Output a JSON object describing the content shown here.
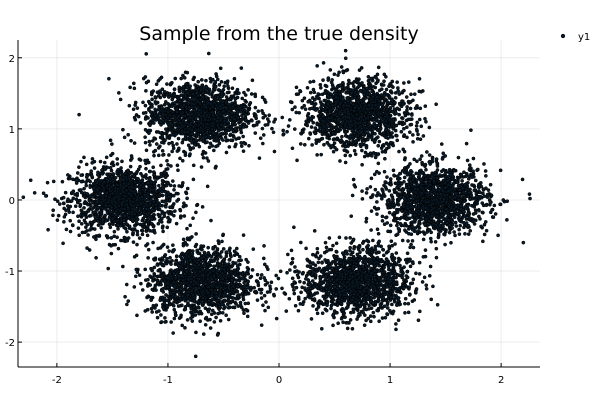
{
  "chart_data": {
    "type": "scatter",
    "title": "Sample from the true density",
    "xlabel": "",
    "ylabel": "",
    "xlim": [
      -2.35,
      2.35
    ],
    "ylim": [
      -2.35,
      2.25
    ],
    "xticks": [
      -2,
      -1,
      0,
      1,
      2
    ],
    "yticks": [
      -2,
      -1,
      0,
      1,
      2
    ],
    "xtick_labels": [
      "-2",
      "-1",
      "0",
      "1",
      "2"
    ],
    "ytick_labels": [
      "-2",
      "-1",
      "0",
      "1",
      "2"
    ],
    "grid": true,
    "legend_position": "right-outside-top",
    "point_color": "#0a1a26",
    "point_edge_color": "#000000",
    "series": [
      {
        "name": "y1",
        "description_of_clusters": [],
        "points": [
          [
            -1.4,
            0.02
          ],
          [
            -1.55,
            0.1
          ],
          [
            -1.25,
            -0.12
          ],
          [
            -1.6,
            -0.2
          ],
          [
            -1.15,
            0.25
          ],
          [
            -1.35,
            0.3
          ],
          [
            -1.7,
            0.05
          ],
          [
            -1.45,
            -0.35
          ],
          [
            -1.2,
            -0.05
          ],
          [
            -1.05,
            0.12
          ],
          [
            -0.72,
            1.2
          ],
          [
            -0.55,
            1.05
          ],
          [
            -0.9,
            1.35
          ],
          [
            -0.6,
            1.45
          ],
          [
            -0.85,
            0.95
          ],
          [
            -0.45,
            1.25
          ],
          [
            -1.0,
            1.15
          ],
          [
            -0.7,
            0.85
          ],
          [
            -0.5,
            1.55
          ],
          [
            -0.8,
            1.6
          ],
          [
            0.7,
            1.2
          ],
          [
            0.55,
            1.35
          ],
          [
            0.9,
            1.05
          ],
          [
            0.6,
            0.95
          ],
          [
            0.85,
            1.45
          ],
          [
            0.45,
            1.15
          ],
          [
            1.0,
            1.25
          ],
          [
            0.72,
            1.6
          ],
          [
            0.5,
            0.8
          ],
          [
            0.8,
            0.85
          ],
          [
            1.4,
            0.0
          ],
          [
            1.55,
            -0.12
          ],
          [
            1.25,
            0.15
          ],
          [
            1.6,
            0.25
          ],
          [
            1.15,
            -0.2
          ],
          [
            1.35,
            -0.3
          ],
          [
            1.7,
            0.05
          ],
          [
            1.45,
            0.35
          ],
          [
            1.2,
            0.05
          ],
          [
            1.8,
            -0.15
          ],
          [
            0.7,
            -1.15
          ],
          [
            0.55,
            -1.3
          ],
          [
            0.9,
            -1.0
          ],
          [
            0.6,
            -0.9
          ],
          [
            0.85,
            -1.45
          ],
          [
            0.45,
            -1.1
          ],
          [
            1.0,
            -1.25
          ],
          [
            0.72,
            -1.6
          ],
          [
            0.5,
            -0.8
          ],
          [
            0.8,
            -1.4
          ],
          [
            -0.7,
            -1.15
          ],
          [
            -0.55,
            -1.0
          ],
          [
            -0.9,
            -1.3
          ],
          [
            -0.6,
            -1.45
          ],
          [
            -0.85,
            -0.9
          ],
          [
            -0.45,
            -1.2
          ],
          [
            -1.0,
            -1.1
          ],
          [
            -0.72,
            -1.6
          ],
          [
            -0.5,
            -0.85
          ],
          [
            -0.8,
            -1.4
          ],
          [
            -2.2,
            0.1
          ],
          [
            2.2,
            -0.6
          ],
          [
            -1.8,
            -0.3
          ],
          [
            -0.75,
            -2.2
          ],
          [
            -1.8,
            1.2
          ],
          [
            0.6,
            2.1
          ],
          [
            1.3,
            0.9
          ],
          [
            -1.3,
            0.8
          ],
          [
            1.3,
            -0.8
          ],
          [
            -1.3,
            -0.8
          ]
        ]
      }
    ],
    "cluster_centers": [
      [
        -1.4,
        0.0
      ],
      [
        -0.72,
        1.2
      ],
      [
        0.7,
        1.2
      ],
      [
        1.4,
        0.0
      ],
      [
        0.7,
        -1.15
      ],
      [
        -0.7,
        -1.15
      ]
    ]
  }
}
